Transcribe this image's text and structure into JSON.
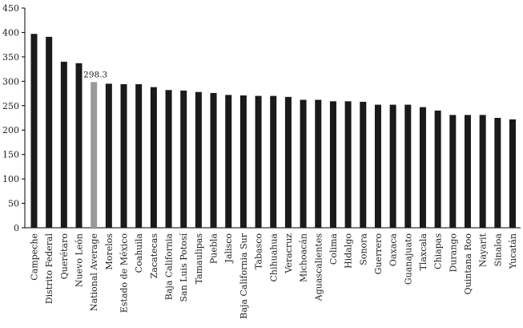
{
  "chart_data": {
    "type": "bar",
    "title": "",
    "xlabel": "",
    "ylabel": "",
    "ylim": [
      0,
      450
    ],
    "yticks": [
      0,
      50,
      100,
      150,
      200,
      250,
      300,
      350,
      400,
      450
    ],
    "grid": false,
    "legend": "none",
    "categories": [
      "Campeche",
      "Distrito Federal",
      "Querétaro",
      "Nuevo León",
      "National Average",
      "Morelos",
      "Estado de México",
      "Coahuila",
      "Zacatecas",
      "Baja California",
      "San Luis Potosí",
      "Tamaulipas",
      "Puebla",
      "Jalisco",
      "Baja California Sur",
      "Tabasco",
      "Chihuahua",
      "Veracruz",
      "Michoacán",
      "Aguascalientes",
      "Colima",
      "Hidalgo",
      "Sonora",
      "Guerrero",
      "Oaxaca",
      "Guanajuato",
      "Tlaxcala",
      "Chiapas",
      "Durango",
      "Quintana Roo",
      "Nayarit",
      "Sinaloa",
      "Yucatán"
    ],
    "values": [
      397,
      391,
      340,
      337,
      298.3,
      295,
      294,
      294,
      288,
      282,
      281,
      278,
      276,
      272,
      271,
      270,
      270,
      268,
      262,
      262,
      259,
      259,
      258,
      252,
      252,
      252,
      247,
      240,
      231,
      231,
      231,
      225,
      222
    ],
    "data_labels": [
      {
        "category": "National Average",
        "text": "298.3"
      }
    ],
    "colors": {
      "bar": "#1a1a1a",
      "highlight": "#999999",
      "axis": "#000000"
    },
    "highlight_category": "National Average"
  }
}
